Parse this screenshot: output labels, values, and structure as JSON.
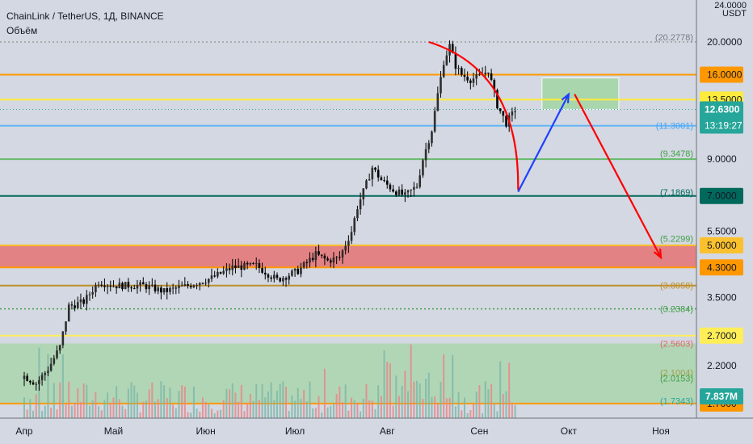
{
  "header": {
    "title": "ChainLink / TetherUS, 1Д, BINANCE",
    "volume_label": "Объём"
  },
  "price_axis": {
    "currency": [
      "24.0000",
      "USDT"
    ]
  },
  "chart_data": {
    "type": "candlestick",
    "title": "ChainLink / TetherUS, 1Д, BINANCE",
    "x_labels": [
      "Апр",
      "Май",
      "Июн",
      "Июл",
      "Авг",
      "Сен",
      "Окт",
      "Ноя"
    ],
    "y_ticks": [
      "20.0000",
      "9.0000",
      "5.5000",
      "3.5000",
      "2.2000"
    ],
    "price_scale": "log",
    "y_range": [
      1.6,
      24
    ],
    "key_levels": [
      {
        "label": "20.0000",
        "price": 20.0,
        "color": "#9e9e9e",
        "style": "dotted"
      },
      {
        "label": "16.0000",
        "price": 16.0,
        "color": "#ff9800",
        "style": "solid",
        "tag": true
      },
      {
        "label": "13.5000",
        "price": 13.5,
        "color": "#ffeb3b",
        "style": "solid",
        "tag": true
      },
      {
        "label": "11.3001",
        "price": 11.3,
        "color": "#64b5f6",
        "style": "solid"
      },
      {
        "label": "9.0000",
        "price": 9.0,
        "color": "#66bb6a",
        "style": "solid"
      },
      {
        "label": "7.0000",
        "price": 7.0,
        "color": "#00695c",
        "style": "solid",
        "tag": true
      },
      {
        "label": "5.0000",
        "price": 5.0,
        "color": "#fbc02d",
        "style": "solid",
        "tag": true
      },
      {
        "label": "4.3000",
        "price": 4.3,
        "color": "#ff9800",
        "style": "solid",
        "tag": true
      },
      {
        "label": "3.8058",
        "price": 3.8,
        "color": "#bf8f2a",
        "style": "solid"
      },
      {
        "label": "3.2384",
        "price": 3.24,
        "color": "#43a047",
        "style": "dotted"
      },
      {
        "label": "2.7000",
        "price": 2.7,
        "color": "#ffee58",
        "style": "solid",
        "tag": true
      },
      {
        "label": "1.7000",
        "price": 1.7,
        "color": "#ff9800",
        "style": "solid",
        "tag": true
      }
    ],
    "axis_notes": [
      "(20.2778)",
      "(11.3001)",
      "(9.3478)",
      "(7.1869)",
      "(5.2299)",
      "(3.8058)",
      "(3.2384)",
      "(2.5603)",
      "(2.1004)",
      "(2.0153)",
      "(1.7343)"
    ],
    "current_price": "12.6300",
    "countdown": "13:19:27",
    "volume_label": "7.837M",
    "zones": [
      {
        "name": "support-zone",
        "from": 4.3,
        "to": 5.0,
        "color": "#e57373"
      },
      {
        "name": "target-zone",
        "from": 13.5,
        "to": 16.0,
        "color": "#a5d6a7"
      },
      {
        "name": "volume-zone",
        "from": 1.7,
        "to": 2.56,
        "color": "#a5d6a7"
      }
    ],
    "drawings": [
      {
        "name": "forecast-down-arc",
        "color": "#ff0000",
        "points": [
          [
            "Авг 15",
            20.0
          ],
          [
            "Сен 1",
            16.0
          ],
          [
            "Сен 14",
            7.3
          ]
        ]
      },
      {
        "name": "forecast-up-arrow",
        "color": "#1e40ff",
        "points": [
          [
            "Сен 14",
            7.2
          ],
          [
            "Окт 1",
            14.0
          ]
        ]
      },
      {
        "name": "forecast-down-arrow",
        "color": "#ff0000",
        "points": [
          [
            "Окт 3",
            14.0
          ],
          [
            "Ноя 1",
            4.6
          ]
        ]
      }
    ]
  }
}
